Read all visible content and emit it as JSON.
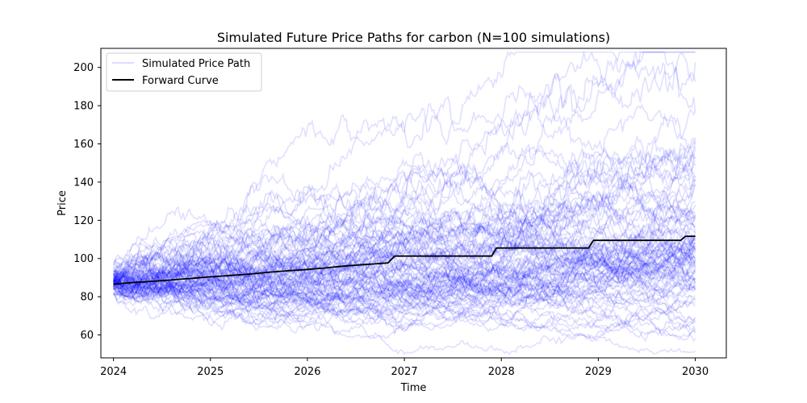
{
  "chart_data": {
    "type": "line",
    "title": "Simulated Future Price Paths for carbon (N=100 simulations)",
    "xlabel": "Time",
    "ylabel": "Price",
    "xlim": [
      2023.87,
      2030.32
    ],
    "ylim": [
      48,
      210
    ],
    "x_ticks": [
      2024,
      2025,
      2026,
      2027,
      2028,
      2029,
      2030
    ],
    "y_ticks": [
      60,
      80,
      100,
      120,
      140,
      160,
      180,
      200
    ],
    "grid": false,
    "legend_position": "top-left",
    "simulations": {
      "name": "Simulated Price Path",
      "count": 100,
      "start": [
        2024,
        88
      ],
      "end": [
        2030,
        112
      ],
      "color": "#0000ff",
      "alpha": 0.12,
      "observed_max": 202,
      "observed_min": 54
    },
    "forward_curve": {
      "name": "Forward Curve",
      "color": "#000000",
      "points": [
        [
          2024.0,
          86.5
        ],
        [
          2024.08,
          87
        ],
        [
          2024.17,
          87.3
        ],
        [
          2024.25,
          87.6
        ],
        [
          2024.33,
          87.8
        ],
        [
          2024.42,
          88.1
        ],
        [
          2024.5,
          88.4
        ],
        [
          2024.58,
          88.7
        ],
        [
          2024.67,
          89.1
        ],
        [
          2024.75,
          89.4
        ],
        [
          2024.83,
          89.7
        ],
        [
          2024.92,
          90.1
        ],
        [
          2025.0,
          90.4
        ],
        [
          2025.08,
          90.7
        ],
        [
          2025.17,
          91.0
        ],
        [
          2025.25,
          91.3
        ],
        [
          2025.33,
          91.6
        ],
        [
          2025.42,
          91.9
        ],
        [
          2025.5,
          92.3
        ],
        [
          2025.58,
          92.7
        ],
        [
          2025.67,
          93.1
        ],
        [
          2025.75,
          93.4
        ],
        [
          2025.83,
          93.7
        ],
        [
          2025.92,
          94.0
        ],
        [
          2026.0,
          94.3
        ],
        [
          2026.08,
          94.6
        ],
        [
          2026.17,
          95.0
        ],
        [
          2026.25,
          95.4
        ],
        [
          2026.33,
          95.8
        ],
        [
          2026.42,
          96.2
        ],
        [
          2026.5,
          96.5
        ],
        [
          2026.58,
          96.8
        ],
        [
          2026.67,
          97.1
        ],
        [
          2026.75,
          97.4
        ],
        [
          2026.83,
          97.7
        ],
        [
          2026.9,
          101.3
        ],
        [
          2027.9,
          101.3
        ],
        [
          2027.95,
          105.5
        ],
        [
          2028.9,
          105.5
        ],
        [
          2028.95,
          109.5
        ],
        [
          2029.85,
          109.5
        ],
        [
          2029.9,
          111.6
        ],
        [
          2030.0,
          111.6
        ]
      ]
    }
  }
}
